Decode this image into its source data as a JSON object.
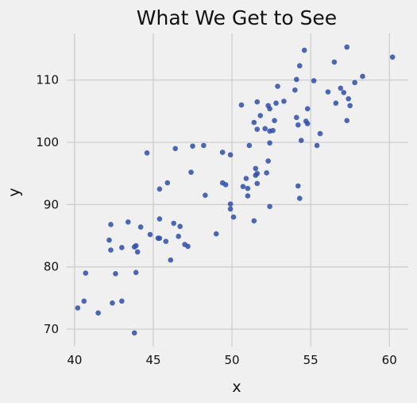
{
  "chart_data": {
    "type": "scatter",
    "title": "What We Get to See",
    "xlabel": "x",
    "ylabel": "y",
    "xlim": [
      39.5,
      61.2
    ],
    "ylim": [
      67.2,
      117.5
    ],
    "xticks": [
      40,
      45,
      50,
      55,
      60
    ],
    "yticks": [
      70,
      80,
      90,
      100,
      110
    ],
    "grid": true,
    "marker_color": "#2e4ea8",
    "points": [
      [
        40.2,
        73.4
      ],
      [
        40.6,
        74.5
      ],
      [
        40.7,
        79.0
      ],
      [
        41.5,
        72.6
      ],
      [
        42.2,
        84.3
      ],
      [
        42.3,
        86.8
      ],
      [
        42.3,
        82.7
      ],
      [
        42.4,
        74.2
      ],
      [
        42.6,
        78.9
      ],
      [
        43.0,
        83.1
      ],
      [
        43.0,
        74.5
      ],
      [
        43.4,
        87.2
      ],
      [
        43.8,
        83.2
      ],
      [
        43.8,
        69.4
      ],
      [
        43.9,
        83.4
      ],
      [
        43.9,
        79.1
      ],
      [
        44.0,
        82.4
      ],
      [
        44.2,
        86.4
      ],
      [
        44.6,
        98.3
      ],
      [
        44.8,
        85.2
      ],
      [
        45.3,
        84.6
      ],
      [
        45.4,
        92.5
      ],
      [
        45.4,
        84.6
      ],
      [
        45.4,
        87.7
      ],
      [
        45.8,
        84.1
      ],
      [
        45.9,
        93.5
      ],
      [
        46.1,
        81.1
      ],
      [
        46.3,
        87.0
      ],
      [
        46.4,
        99.0
      ],
      [
        46.6,
        84.9
      ],
      [
        46.7,
        86.5
      ],
      [
        47.0,
        83.6
      ],
      [
        47.2,
        83.3
      ],
      [
        47.4,
        95.2
      ],
      [
        47.5,
        99.4
      ],
      [
        48.2,
        99.5
      ],
      [
        48.3,
        91.5
      ],
      [
        49.0,
        85.3
      ],
      [
        49.4,
        98.4
      ],
      [
        49.4,
        93.5
      ],
      [
        49.6,
        93.2
      ],
      [
        49.9,
        98.0
      ],
      [
        49.9,
        90.1
      ],
      [
        49.9,
        89.3
      ],
      [
        50.1,
        88.0
      ],
      [
        50.6,
        106.0
      ],
      [
        50.7,
        92.9
      ],
      [
        50.9,
        94.2
      ],
      [
        51.0,
        92.6
      ],
      [
        51.0,
        91.4
      ],
      [
        51.1,
        99.5
      ],
      [
        51.4,
        103.2
      ],
      [
        51.4,
        87.4
      ],
      [
        51.5,
        95.8
      ],
      [
        51.5,
        94.7
      ],
      [
        51.6,
        106.5
      ],
      [
        51.6,
        102.1
      ],
      [
        51.6,
        93.4
      ],
      [
        51.6,
        95.0
      ],
      [
        51.8,
        104.3
      ],
      [
        52.1,
        102.2
      ],
      [
        52.2,
        95.1
      ],
      [
        52.3,
        105.9
      ],
      [
        52.3,
        97.0
      ],
      [
        52.4,
        101.8
      ],
      [
        52.4,
        105.4
      ],
      [
        52.4,
        99.9
      ],
      [
        52.4,
        89.7
      ],
      [
        52.6,
        101.9
      ],
      [
        52.7,
        103.5
      ],
      [
        52.8,
        106.3
      ],
      [
        52.9,
        109.0
      ],
      [
        53.3,
        106.6
      ],
      [
        54.0,
        108.4
      ],
      [
        54.1,
        104.0
      ],
      [
        54.1,
        110.1
      ],
      [
        54.2,
        102.8
      ],
      [
        54.2,
        93.0
      ],
      [
        54.3,
        112.3
      ],
      [
        54.3,
        91.0
      ],
      [
        54.4,
        100.3
      ],
      [
        54.6,
        114.8
      ],
      [
        54.7,
        103.4
      ],
      [
        54.8,
        105.4
      ],
      [
        54.8,
        103.0
      ],
      [
        55.2,
        109.9
      ],
      [
        55.4,
        99.5
      ],
      [
        55.6,
        101.4
      ],
      [
        56.1,
        108.1
      ],
      [
        56.5,
        112.9
      ],
      [
        56.6,
        106.3
      ],
      [
        56.9,
        108.7
      ],
      [
        57.1,
        108.0
      ],
      [
        57.3,
        115.3
      ],
      [
        57.3,
        103.5
      ],
      [
        57.4,
        107.0
      ],
      [
        57.5,
        105.9
      ],
      [
        57.8,
        109.6
      ],
      [
        58.3,
        110.6
      ],
      [
        60.2,
        113.7
      ]
    ]
  }
}
